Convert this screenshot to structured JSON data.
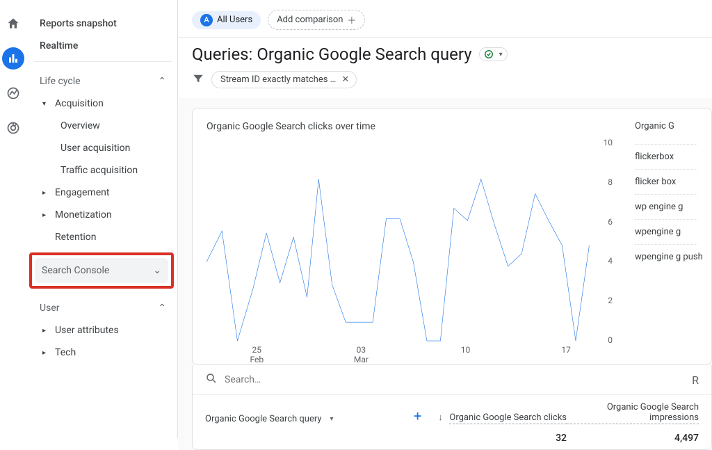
{
  "rail": {
    "home": "home",
    "reports": "reports",
    "explore": "explore",
    "advertising": "advertising"
  },
  "sidebar": {
    "reports_snapshot": "Reports snapshot",
    "realtime": "Realtime",
    "life_cycle": {
      "label": "Life cycle"
    },
    "acquisition": {
      "label": "Acquisition",
      "overview": "Overview",
      "user_acquisition": "User acquisition",
      "traffic_acquisition": "Traffic acquisition"
    },
    "engagement": "Engagement",
    "monetization": "Monetization",
    "retention": "Retention",
    "search_console": "Search Console",
    "user_section": "User",
    "user_attributes": "User attributes",
    "tech": "Tech"
  },
  "topbar": {
    "all_users_badge": "A",
    "all_users": "All Users",
    "add_comparison": "Add comparison"
  },
  "title": "Queries: Organic Google Search query",
  "filter_chip": "Stream ID exactly matches …",
  "chart": {
    "title": "Organic Google Search clicks over time",
    "ylim": [
      0,
      10
    ],
    "yticks": [
      10,
      8,
      6,
      4,
      2,
      0
    ],
    "xticks": [
      {
        "pos": 0.13,
        "l1": "25",
        "l2": "Feb"
      },
      {
        "pos": 0.4,
        "l1": "03",
        "l2": "Mar"
      },
      {
        "pos": 0.67,
        "l1": "10",
        "l2": ""
      },
      {
        "pos": 0.93,
        "l1": "17",
        "l2": ""
      }
    ],
    "line_color": "#1a73e8",
    "line_width": 2,
    "points": [
      [
        0.0,
        4.0
      ],
      [
        0.04,
        5.5
      ],
      [
        0.08,
        0.2
      ],
      [
        0.12,
        2.7
      ],
      [
        0.155,
        5.4
      ],
      [
        0.19,
        3.0
      ],
      [
        0.225,
        5.2
      ],
      [
        0.26,
        2.3
      ],
      [
        0.29,
        8.0
      ],
      [
        0.325,
        2.9
      ],
      [
        0.36,
        1.1
      ],
      [
        0.395,
        1.1
      ],
      [
        0.43,
        1.1
      ],
      [
        0.465,
        6.1
      ],
      [
        0.5,
        6.1
      ],
      [
        0.535,
        4.0
      ],
      [
        0.57,
        0.2
      ],
      [
        0.605,
        0.2
      ],
      [
        0.64,
        6.6
      ],
      [
        0.675,
        6.0
      ],
      [
        0.71,
        8.0
      ],
      [
        0.745,
        5.8
      ],
      [
        0.78,
        3.8
      ],
      [
        0.815,
        4.4
      ],
      [
        0.85,
        7.3
      ],
      [
        0.885,
        6.0
      ],
      [
        0.92,
        4.8
      ],
      [
        0.955,
        0.2
      ],
      [
        0.99,
        4.8
      ]
    ]
  },
  "legend": {
    "title": "Organic G",
    "items": [
      "flickerbox",
      "flicker box",
      "wp engine g",
      "wpengine g",
      "wpengine g\npush"
    ]
  },
  "table": {
    "search_placeholder": "Search…",
    "query_col": "Organic Google Search query",
    "clicks_col": "Organic Google Search clicks",
    "impressions_col": "Organic Google Search impressions",
    "right_hint": "R",
    "sum_clicks": "32",
    "sum_impressions": "4,497"
  }
}
